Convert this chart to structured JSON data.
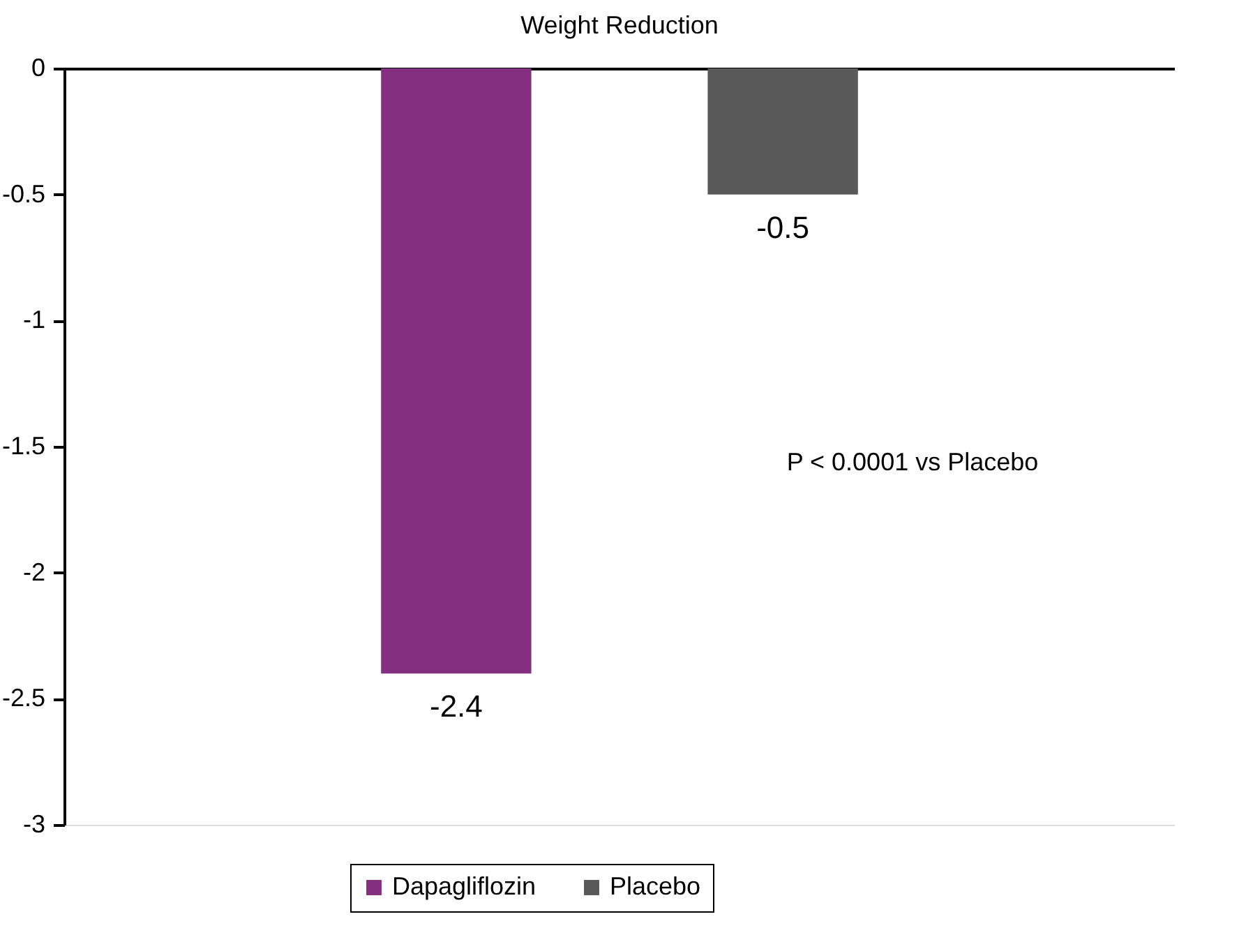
{
  "chart_data": {
    "type": "bar",
    "title": "Weight Reduction",
    "categories": [
      null
    ],
    "series": [
      {
        "name": "Dapagliflozin",
        "color": "#833080",
        "values": [
          -2.4
        ]
      },
      {
        "name": "Placebo",
        "color": "#595959",
        "values": [
          -0.5
        ]
      }
    ],
    "ylim": [
      -3,
      0
    ],
    "yticks": [
      -3,
      -2.5,
      -2,
      -1.5,
      -1,
      -0.5,
      0
    ],
    "grid": false,
    "legend": "bottom",
    "data_labels": true,
    "tick_labels": "y",
    "annotations": [
      "P < 0.0001 vs Placebo"
    ]
  }
}
